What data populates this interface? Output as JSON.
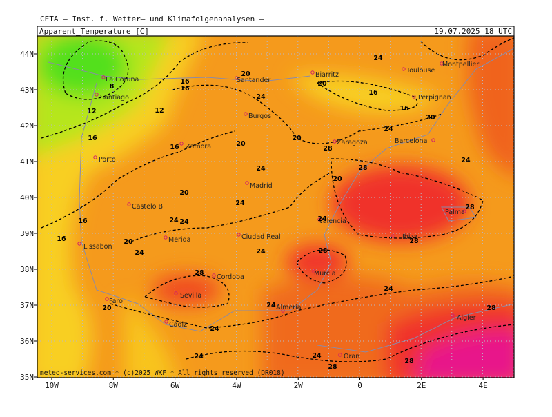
{
  "header": {
    "institute": "CETA — Inst. f. Wetter— und Klimafolgenanalysen —",
    "field": "Apparent_Temperature [C]",
    "valid_time": "19.07.2025 18 UTC"
  },
  "map": {
    "lat_labels": [
      "44N",
      "43N",
      "42N",
      "41N",
      "40N",
      "39N",
      "38N",
      "37N",
      "36N",
      "35N"
    ],
    "lon_labels": [
      "10W",
      "8W",
      "6W",
      "4W",
      "2W",
      "0",
      "2E",
      "4E"
    ],
    "cities": [
      "La Coruna",
      "Santiago",
      "Porto",
      "Lissabon",
      "Faro",
      "Cadiz",
      "Sevilla",
      "Cordoba",
      "Merida",
      "Castelo B.",
      "Zamora",
      "Burgos",
      "Santander",
      "Madrid",
      "Ciudad Real",
      "Valencia",
      "Murcia",
      "Almeria",
      "Zaragoza",
      "Barcelona",
      "Biarritz",
      "Toulouse",
      "Montpellier",
      "Perpignan",
      "Palma",
      "Ibiza",
      "Algier",
      "Oran"
    ],
    "contour_labels": [
      8,
      16,
      16,
      20,
      24,
      24,
      20,
      16,
      16,
      12,
      12,
      16,
      16,
      20,
      20,
      20,
      24,
      28,
      28,
      24,
      20,
      20,
      24,
      24,
      28,
      16,
      16,
      20,
      24,
      24,
      24,
      28,
      24,
      24,
      28,
      28,
      24,
      20,
      24,
      28,
      24,
      24,
      24,
      28,
      28
    ],
    "footer": "meteo-services.com * (c)2025 WKF * All rights reserved (DR018)"
  }
}
